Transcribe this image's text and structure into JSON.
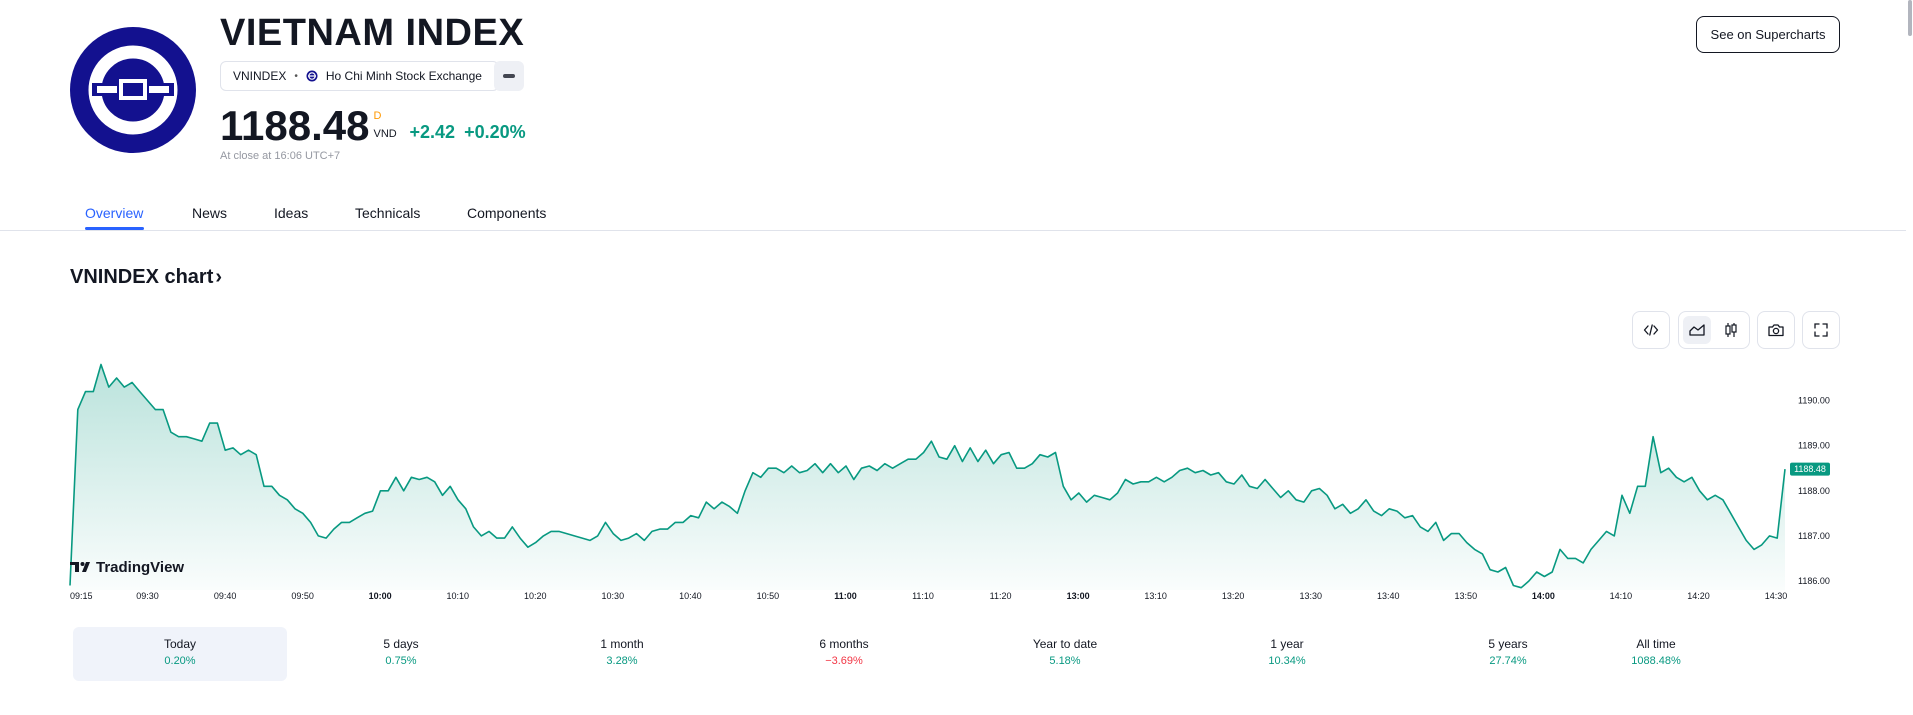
{
  "header": {
    "title": "VIETNAM INDEX",
    "symbol": "VNINDEX",
    "exchange": "Ho Chi Minh Stock Exchange",
    "price": "1188.48",
    "price_badge": "D",
    "currency": "VND",
    "change_abs": "+2.42",
    "change_pct": "+0.20%",
    "close_note": "At close at 16:06 UTC+7",
    "supercharts_label": "See on Supercharts"
  },
  "tabs": [
    {
      "label": "Overview",
      "active": true
    },
    {
      "label": "News"
    },
    {
      "label": "Ideas"
    },
    {
      "label": "Technicals"
    },
    {
      "label": "Components"
    }
  ],
  "chart_section": {
    "heading": "VNINDEX chart",
    "tools": [
      "embed-code-icon",
      "area-chart-icon",
      "candles-icon",
      "camera-icon",
      "fullscreen-icon"
    ]
  },
  "chart_data": {
    "type": "area",
    "brand": "TradingView",
    "line_color": "#089981",
    "x_ticks": [
      "09:15",
      "09:30",
      "09:40",
      "09:50",
      "10:00",
      "10:10",
      "10:20",
      "10:30",
      "10:40",
      "10:50",
      "11:00",
      "11:10",
      "11:20",
      "13:00",
      "13:10",
      "13:20",
      "13:30",
      "13:40",
      "13:50",
      "14:00",
      "14:10",
      "14:20",
      "14:30"
    ],
    "x_ticks_bold": [
      "10:00",
      "11:00",
      "13:00",
      "14:00"
    ],
    "y_ticks": [
      "1190.00",
      "1189.00",
      "1188.00",
      "1187.00",
      "1186.00"
    ],
    "ylim": [
      1185.8,
      1190.9
    ],
    "last_value": "1188.48",
    "series": [
      1185.9,
      1189.8,
      1190.2,
      1190.2,
      1190.8,
      1190.3,
      1190.5,
      1190.3,
      1190.4,
      1190.2,
      1190.0,
      1189.8,
      1189.8,
      1189.3,
      1189.2,
      1189.2,
      1189.15,
      1189.1,
      1189.5,
      1189.5,
      1188.9,
      1188.95,
      1188.8,
      1188.9,
      1188.8,
      1188.1,
      1188.1,
      1187.9,
      1187.8,
      1187.6,
      1187.5,
      1187.3,
      1187.0,
      1186.95,
      1187.15,
      1187.3,
      1187.3,
      1187.4,
      1187.5,
      1187.55,
      1188.0,
      1188.0,
      1188.3,
      1188.0,
      1188.3,
      1188.25,
      1188.3,
      1188.2,
      1187.9,
      1188.1,
      1187.8,
      1187.6,
      1187.2,
      1187.0,
      1187.1,
      1186.95,
      1186.95,
      1187.2,
      1186.95,
      1186.75,
      1186.85,
      1187.0,
      1187.1,
      1187.1,
      1187.05,
      1187.0,
      1186.95,
      1186.9,
      1187.0,
      1187.3,
      1187.05,
      1186.9,
      1186.95,
      1187.05,
      1186.9,
      1187.1,
      1187.15,
      1187.15,
      1187.3,
      1187.3,
      1187.45,
      1187.4,
      1187.75,
      1187.6,
      1187.75,
      1187.65,
      1187.5,
      1188.0,
      1188.4,
      1188.3,
      1188.5,
      1188.5,
      1188.4,
      1188.55,
      1188.4,
      1188.45,
      1188.6,
      1188.4,
      1188.6,
      1188.4,
      1188.55,
      1188.25,
      1188.5,
      1188.55,
      1188.45,
      1188.6,
      1188.5,
      1188.6,
      1188.7,
      1188.7,
      1188.85,
      1189.1,
      1188.75,
      1188.7,
      1189.0,
      1188.65,
      1188.95,
      1188.65,
      1188.9,
      1188.6,
      1188.8,
      1188.85,
      1188.5,
      1188.5,
      1188.6,
      1188.8,
      1188.75,
      1188.85,
      1188.1,
      1187.8,
      1187.95,
      1187.75,
      1187.9,
      1187.85,
      1187.8,
      1187.95,
      1188.25,
      1188.15,
      1188.2,
      1188.2,
      1188.3,
      1188.2,
      1188.3,
      1188.45,
      1188.5,
      1188.4,
      1188.45,
      1188.35,
      1188.4,
      1188.2,
      1188.15,
      1188.35,
      1188.1,
      1188.05,
      1188.25,
      1188.05,
      1187.85,
      1188.0,
      1187.8,
      1187.75,
      1188.0,
      1188.05,
      1187.9,
      1187.6,
      1187.7,
      1187.5,
      1187.6,
      1187.8,
      1187.55,
      1187.45,
      1187.6,
      1187.55,
      1187.4,
      1187.45,
      1187.2,
      1187.1,
      1187.3,
      1186.9,
      1187.05,
      1187.05,
      1186.85,
      1186.7,
      1186.6,
      1186.25,
      1186.2,
      1186.3,
      1185.9,
      1185.85,
      1186.0,
      1186.2,
      1186.1,
      1186.2,
      1186.7,
      1186.5,
      1186.5,
      1186.4,
      1186.7,
      1186.9,
      1187.1,
      1187.0,
      1187.9,
      1187.5,
      1188.1,
      1188.1,
      1189.2,
      1188.4,
      1188.5,
      1188.3,
      1188.2,
      1188.3,
      1188.0,
      1187.8,
      1187.9,
      1187.8,
      1187.5,
      1187.2,
      1186.9,
      1186.7,
      1186.8,
      1187.0,
      1186.95,
      1188.48
    ]
  },
  "periods": [
    {
      "label": "Today",
      "value": "0.20%",
      "positive": true,
      "selected": true
    },
    {
      "label": "5 days",
      "value": "0.75%",
      "positive": true
    },
    {
      "label": "1 month",
      "value": "3.28%",
      "positive": true
    },
    {
      "label": "6 months",
      "value": "−3.69%",
      "positive": false
    },
    {
      "label": "Year to date",
      "value": "5.18%",
      "positive": true
    },
    {
      "label": "1 year",
      "value": "10.34%",
      "positive": true
    },
    {
      "label": "5 years",
      "value": "27.74%",
      "positive": true
    },
    {
      "label": "All time",
      "value": "1088.48%",
      "positive": true
    }
  ]
}
